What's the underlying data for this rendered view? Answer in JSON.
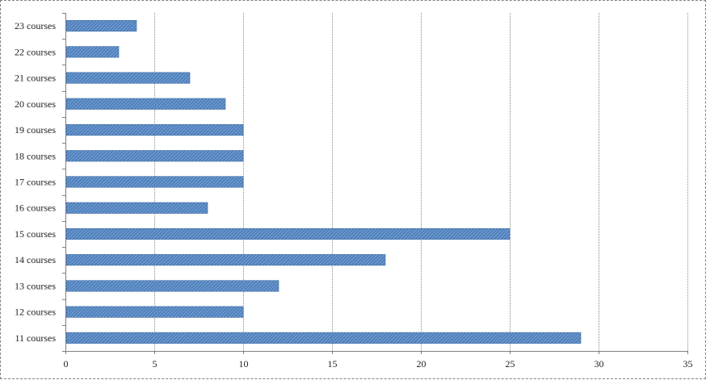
{
  "chart_data": {
    "type": "bar",
    "orientation": "horizontal",
    "categories": [
      "11 courses",
      "12 courses",
      "13 courses",
      "14 courses",
      "15 courses",
      "16 courses",
      "17 courses",
      "18 courses",
      "19 courses",
      "20 courses",
      "21 courses",
      "22 courses",
      "23 courses"
    ],
    "values": [
      29,
      10,
      12,
      18,
      25,
      8,
      10,
      10,
      10,
      9,
      7,
      3,
      4
    ],
    "x_ticks": [
      0,
      5,
      10,
      15,
      20,
      25,
      30,
      35
    ],
    "xlim": [
      0,
      35
    ],
    "grid": true,
    "bar_color": "#4f81bd",
    "title": "",
    "xlabel": "",
    "ylabel": ""
  }
}
